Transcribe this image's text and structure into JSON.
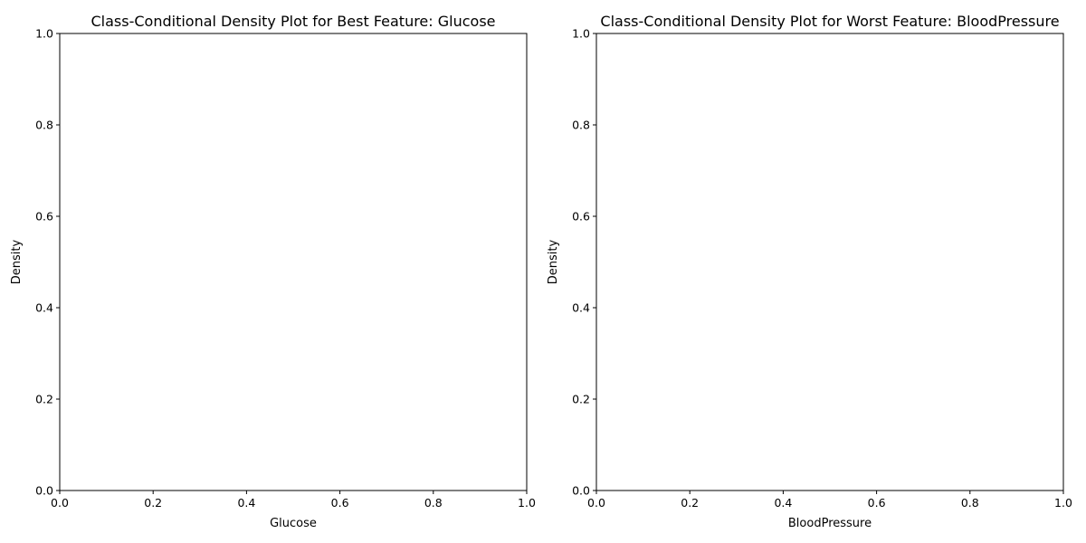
{
  "chart_data": [
    {
      "type": "area",
      "title": "Class-Conditional Density Plot for Best Feature: Glucose",
      "xlabel": "Glucose",
      "ylabel": "Density",
      "xlim": [
        0,
        1
      ],
      "ylim": [
        0,
        1
      ],
      "xticks": [
        "0.0",
        "0.2",
        "0.4",
        "0.6",
        "0.8",
        "1.0"
      ],
      "yticks": [
        "0.0",
        "0.2",
        "0.4",
        "0.6",
        "0.8",
        "1.0"
      ],
      "grid": false,
      "series": []
    },
    {
      "type": "area",
      "title": "Class-Conditional Density Plot for Worst Feature: BloodPressure",
      "xlabel": "BloodPressure",
      "ylabel": "Density",
      "xlim": [
        0,
        1
      ],
      "ylim": [
        0,
        1
      ],
      "xticks": [
        "0.0",
        "0.2",
        "0.4",
        "0.6",
        "0.8",
        "1.0"
      ],
      "yticks": [
        "0.0",
        "0.2",
        "0.4",
        "0.6",
        "0.8",
        "1.0"
      ],
      "grid": false,
      "series": []
    }
  ]
}
